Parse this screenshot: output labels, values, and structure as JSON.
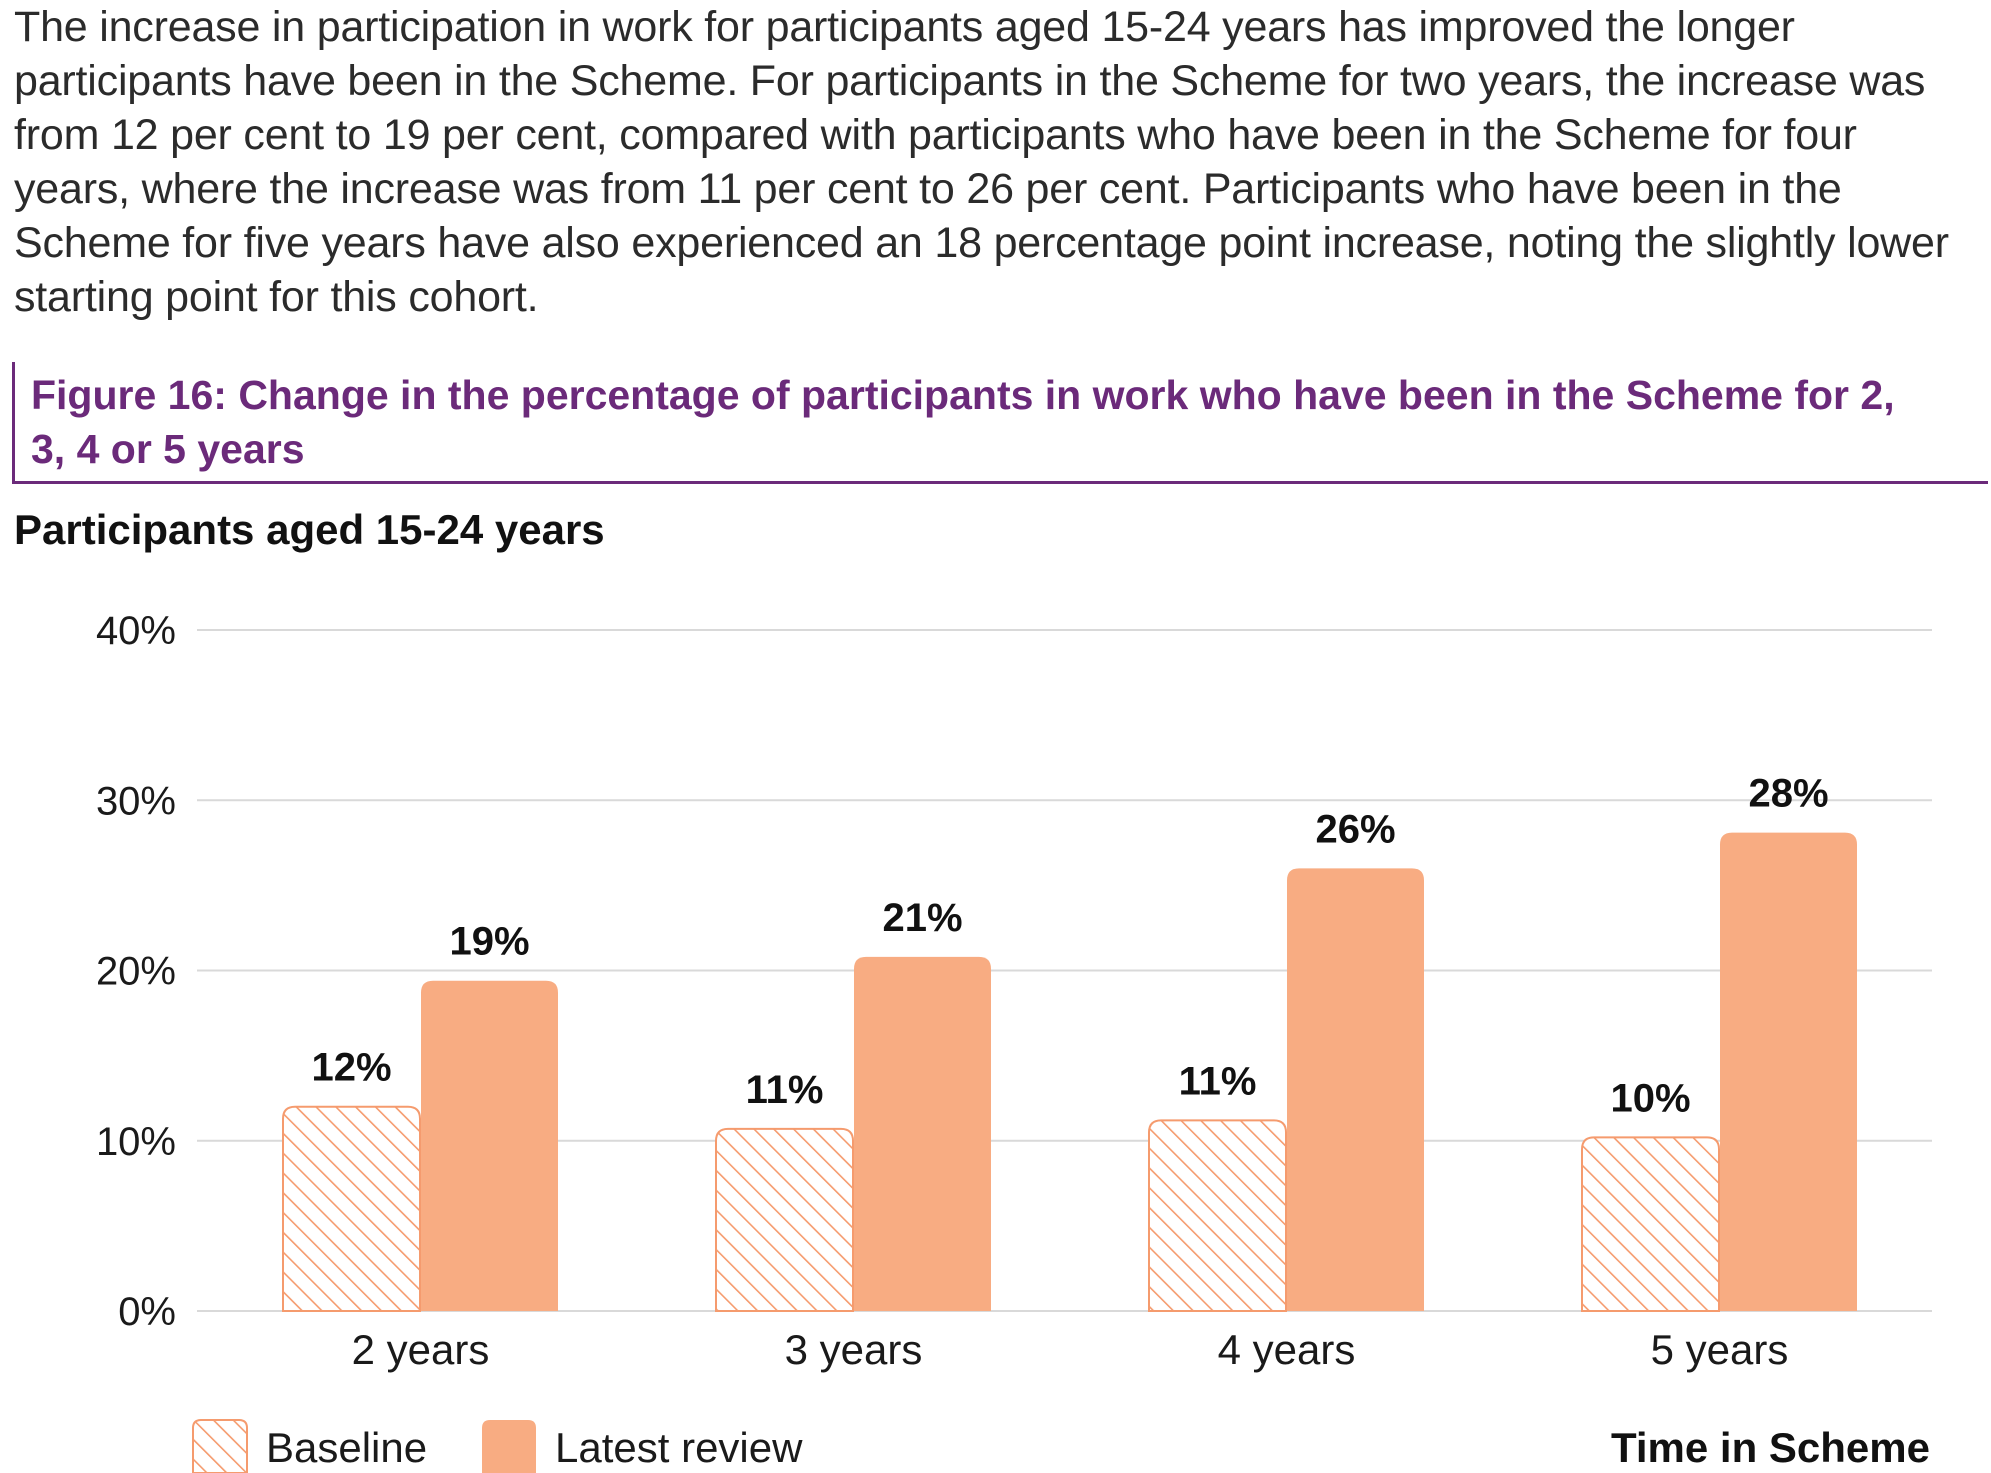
{
  "intro_text": "The increase in participation in work for participants aged 15-24 years has improved the longer participants have been in the Scheme. For participants in the Scheme for two years, the increase was from 12 per cent to 19 per cent, compared with participants who have been in the Scheme for four years, where the increase was from 11 per cent to 26 per cent. Participants who have been in the Scheme for five years have also experienced an 18 percentage point increase, noting the slightly lower starting point for this cohort.",
  "figure_caption": "Figure 16: Change in the percentage of participants in work who have been in the Scheme for 2, 3, 4 or 5 years",
  "colors": {
    "caption": "#6b2a7a",
    "latest": "#f8ac82",
    "baseline_hatch": "#f59b6e",
    "grid": "#d9d9d9"
  },
  "chart_data": {
    "type": "bar",
    "title": "Participants aged 15-24 years",
    "xlabel": "Time in Scheme",
    "ylabel": "",
    "categories": [
      "2 years",
      "3 years",
      "4 years",
      "5 years"
    ],
    "series": [
      {
        "name": "Baseline",
        "values": [
          12,
          10.7,
          11.2,
          10.2
        ],
        "labels": [
          "12%",
          "11%",
          "11%",
          "10%"
        ],
        "fill": "hatched"
      },
      {
        "name": "Latest review",
        "values": [
          19.4,
          20.8,
          26,
          28.1
        ],
        "labels": [
          "19%",
          "21%",
          "26%",
          "28%"
        ],
        "fill": "solid"
      }
    ],
    "ylim": [
      0,
      40
    ],
    "yticks": [
      0,
      10,
      20,
      30,
      40
    ],
    "ytick_labels": [
      "0%",
      "10%",
      "20%",
      "30%",
      "40%"
    ],
    "grid": true,
    "legend_position": "bottom-left"
  }
}
